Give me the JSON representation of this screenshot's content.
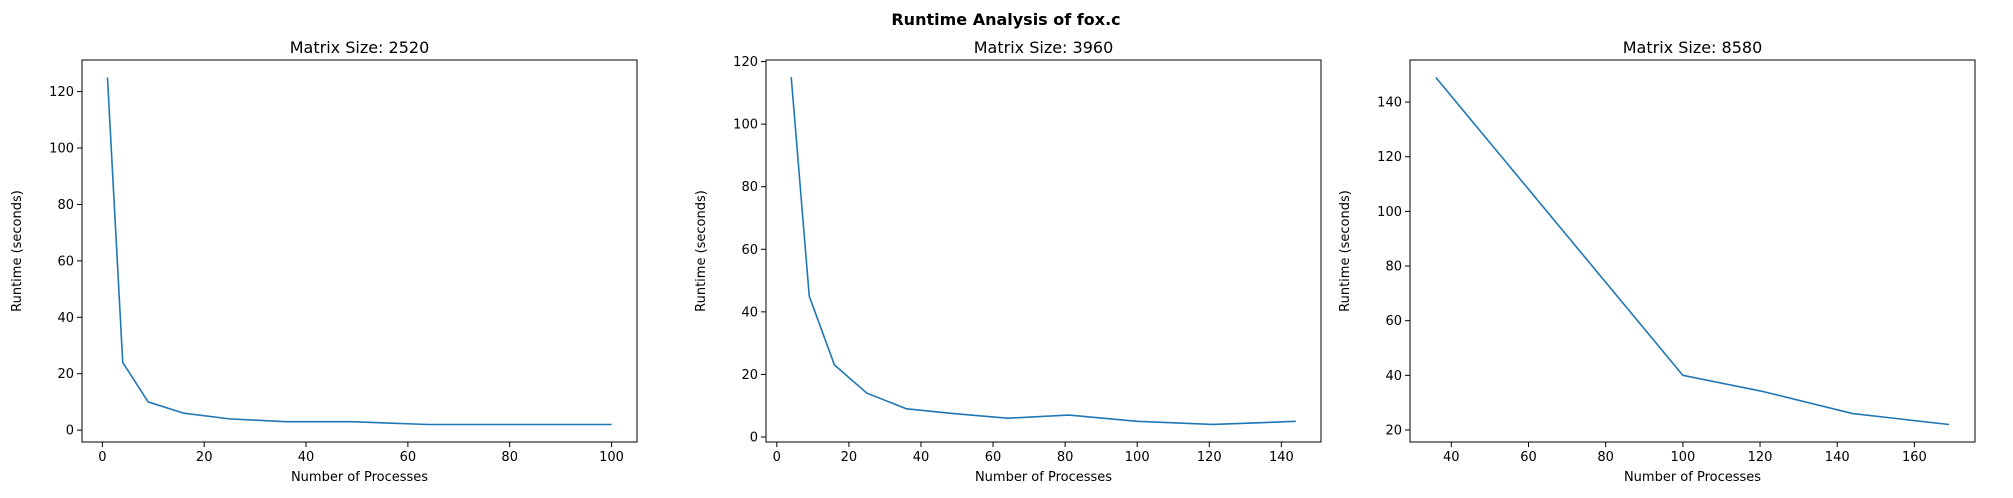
{
  "figure": {
    "suptitle": "Runtime Analysis of fox.c",
    "line_color": "#1f77b4"
  },
  "chart_data": [
    {
      "type": "line",
      "title": "Matrix Size: 2520",
      "xlabel": "Number of Processes",
      "ylabel": "Runtime (seconds)",
      "xlim": [
        -4,
        105
      ],
      "ylim": [
        -4.2,
        131.2
      ],
      "xticks": [
        0,
        20,
        40,
        60,
        80,
        100
      ],
      "yticks": [
        0,
        20,
        40,
        60,
        80,
        100,
        120
      ],
      "x": [
        1,
        4,
        9,
        16,
        25,
        36,
        49,
        64,
        81,
        100
      ],
      "y": [
        125,
        24,
        10,
        6,
        4,
        3,
        3,
        2,
        2,
        2
      ]
    },
    {
      "type": "line",
      "title": "Matrix Size: 3960",
      "xlabel": "Number of Processes",
      "ylabel": "Runtime (seconds)",
      "xlim": [
        -3,
        151
      ],
      "ylim": [
        -1.6,
        120.5
      ],
      "xticks": [
        0,
        20,
        40,
        60,
        80,
        100,
        120,
        140
      ],
      "yticks": [
        0,
        20,
        40,
        60,
        80,
        100,
        120
      ],
      "x": [
        4,
        9,
        16,
        25,
        36,
        49,
        64,
        81,
        100,
        121,
        144
      ],
      "y": [
        115,
        45,
        23,
        14,
        9,
        7.5,
        6,
        7,
        5,
        4,
        5
      ]
    },
    {
      "type": "line",
      "title": "Matrix Size: 8580",
      "xlabel": "Number of Processes",
      "ylabel": "Runtime (seconds)",
      "xlim": [
        29.3,
        175.7
      ],
      "ylim": [
        15.6,
        155.4
      ],
      "xticks": [
        40,
        60,
        80,
        100,
        120,
        140,
        160
      ],
      "yticks": [
        20,
        40,
        60,
        80,
        100,
        120,
        140
      ],
      "x": [
        36,
        100,
        121,
        144,
        169
      ],
      "y": [
        149,
        40,
        34,
        26,
        22
      ]
    }
  ]
}
